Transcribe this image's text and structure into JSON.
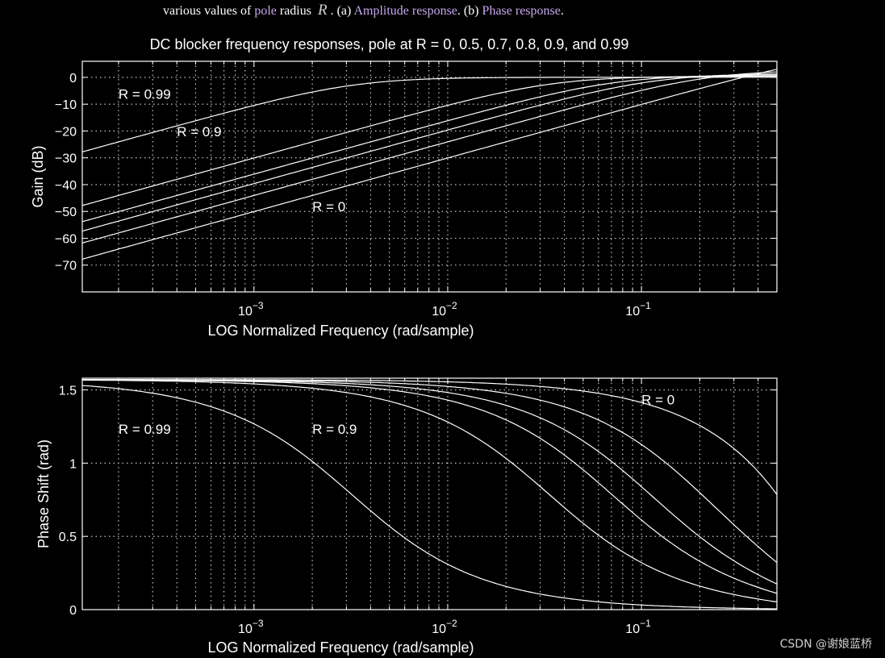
{
  "caption": {
    "text_before": "various values of",
    "link_pole": "pole",
    "text_radius": "radius",
    "variable": "R",
    "text_a": ". (a)",
    "link_amplitude": "Amplitude response",
    "text_b": ". (b)",
    "link_phase": "Phase response",
    "text_end": "."
  },
  "watermark": "CSDN @谢娘蓝桥",
  "colors": {
    "background": "#000000",
    "foreground": "#ffffff",
    "link": "#c9a8f0"
  },
  "chart_data": [
    {
      "type": "line",
      "title": "DC blocker frequency responses, pole at R = 0, 0.5, 0.7, 0.8, 0.9, and 0.99",
      "xlabel": "LOG Normalized Frequency (rad/sample)",
      "ylabel": "Gain (dB)",
      "xscale": "log",
      "xlim": [
        0.00013,
        0.5
      ],
      "ylim": [
        -80,
        6
      ],
      "yticks": [
        0,
        -10,
        -20,
        -30,
        -40,
        -50,
        -60,
        -70
      ],
      "ytick_labels": [
        "0",
        "−10",
        "−20",
        "−30",
        "−40",
        "−50",
        "−60",
        "−70"
      ],
      "xticks": [
        0.001,
        0.01,
        0.1
      ],
      "xtick_labels": [
        {
          "base": "10",
          "exp": "-3"
        },
        {
          "base": "10",
          "exp": "-2"
        },
        {
          "base": "10",
          "exp": "-1"
        }
      ],
      "grid": true,
      "series_R": [
        0,
        0.5,
        0.7,
        0.8,
        0.9,
        0.99
      ],
      "annotations": [
        {
          "text": "R = 0.99",
          "x": 0.0002,
          "y": -8
        },
        {
          "text": "R = 0.9",
          "x": 0.0004,
          "y": -22
        },
        {
          "text": "R = 0",
          "x": 0.002,
          "y": -50
        }
      ]
    },
    {
      "type": "line",
      "title": "",
      "xlabel": "LOG Normalized Frequency (rad/sample)",
      "ylabel": "Phase Shift (rad)",
      "xscale": "log",
      "xlim": [
        0.00013,
        0.5
      ],
      "ylim": [
        0,
        1.58
      ],
      "yticks": [
        1.5,
        1,
        0.5,
        0
      ],
      "ytick_labels": [
        "1.5",
        "1",
        "0.5",
        "0"
      ],
      "xticks": [
        0.001,
        0.01,
        0.1
      ],
      "xtick_labels": [
        {
          "base": "10",
          "exp": "-3"
        },
        {
          "base": "10",
          "exp": "-2"
        },
        {
          "base": "10",
          "exp": "-1"
        }
      ],
      "grid": true,
      "series_R": [
        0,
        0.5,
        0.7,
        0.8,
        0.9,
        0.99
      ],
      "annotations": [
        {
          "text": "R = 0.99",
          "x": 0.0002,
          "y": 1.2
        },
        {
          "text": "R = 0.9",
          "x": 0.002,
          "y": 1.2
        },
        {
          "text": "R = 0",
          "x": 0.1,
          "y": 1.4
        }
      ]
    }
  ]
}
